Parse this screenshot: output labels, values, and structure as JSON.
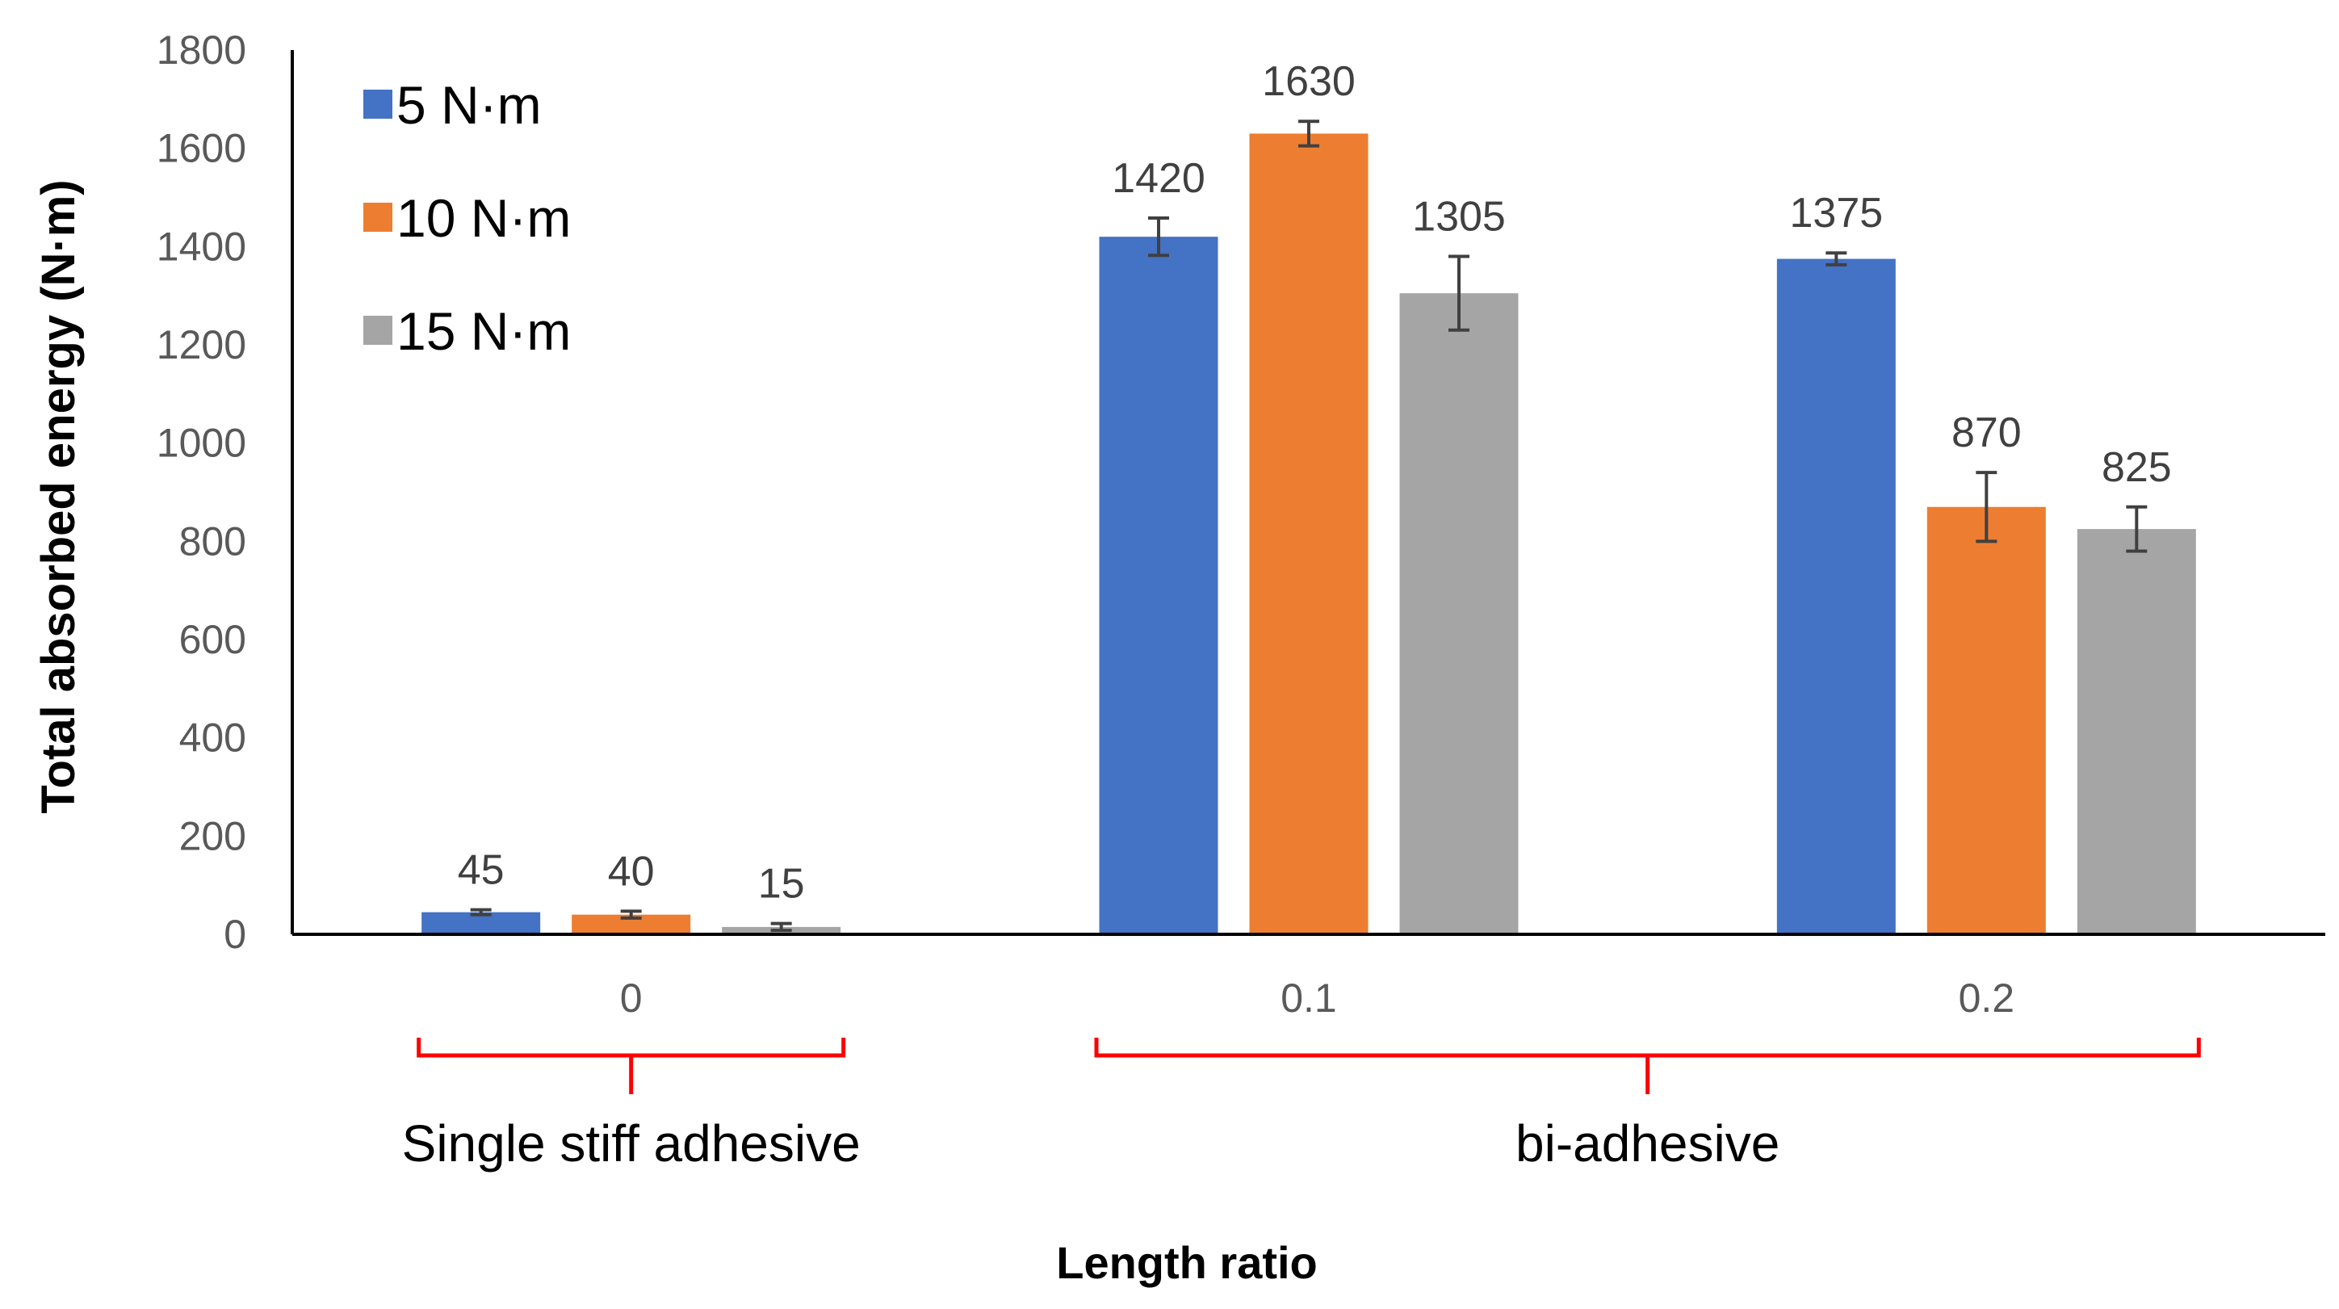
{
  "chart_data": {
    "type": "bar",
    "title": "",
    "xlabel": "Length ratio",
    "ylabel": "Total absorbed energy (N·m)",
    "ylim": [
      0,
      1800
    ],
    "yticks": [
      "0",
      "200",
      "400",
      "600",
      "800",
      "1000",
      "1200",
      "1400",
      "1600",
      "1800"
    ],
    "categories": [
      "0",
      "0.1",
      "0.2"
    ],
    "series": [
      {
        "name": "5 N·m",
        "color": "#4472C4",
        "values": [
          45,
          1420,
          1375
        ],
        "errors": [
          5,
          38,
          12
        ],
        "labels": [
          "45",
          "1420",
          "1375"
        ]
      },
      {
        "name": "10 N·m",
        "color": "#ED7D31",
        "values": [
          40,
          1630,
          870
        ],
        "errors": [
          7,
          25,
          70
        ],
        "labels": [
          "40",
          "1630",
          "870"
        ]
      },
      {
        "name": "15 N·m",
        "color": "#A5A5A5",
        "values": [
          15,
          1305,
          825
        ],
        "errors": [
          7,
          75,
          45
        ],
        "labels": [
          "15",
          "1305",
          "825"
        ]
      }
    ],
    "legend_position": "top-left",
    "groups": [
      {
        "label": "Single stiff adhesive",
        "categories": [
          "0"
        ]
      },
      {
        "label": "bi-adhesive",
        "categories": [
          "0.1",
          "0.2"
        ]
      }
    ],
    "bracket_color": "#FF0000",
    "grid": false
  }
}
